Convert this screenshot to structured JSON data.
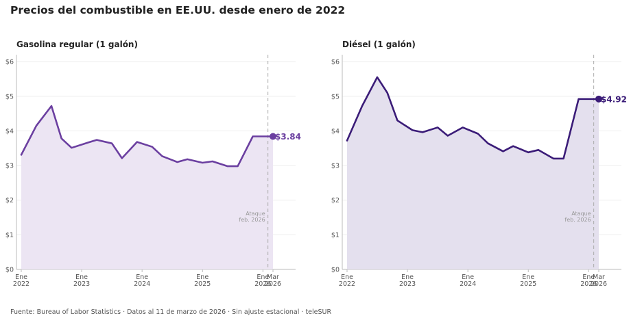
{
  "title": "Precios del combustible en EE.UU. desde enero de 2022",
  "footer": "Fuente: Bureau of Labor Statistics  ·  Datos al 11 de marzo de 2026  ·  Sin ajuste estacional  ·  teleSUR",
  "chart_data": [
    {
      "type": "line",
      "title": "Gasolina regular (1 galón)",
      "color": "#6b3fa0",
      "fill_color": "#ece5f3",
      "y_ticks": [
        "$0",
        "$1",
        "$2",
        "$3",
        "$4",
        "$5",
        "$6"
      ],
      "ylim": [
        0,
        6.2
      ],
      "x_ticks": [
        {
          "date": "2022-01",
          "line1": "Ene",
          "line2": "2022"
        },
        {
          "date": "2023-01",
          "line1": "Ene",
          "line2": "2023"
        },
        {
          "date": "2024-01",
          "line1": "Ene",
          "line2": "2024"
        },
        {
          "date": "2025-01",
          "line1": "Ene",
          "line2": "2025"
        },
        {
          "date": "2026-01",
          "line1": "Ene",
          "line2": "2026"
        },
        {
          "date": "2026-03",
          "line1": "Mar",
          "line2": "2026"
        }
      ],
      "x": [
        "2022-01",
        "2022-04",
        "2022-07",
        "2022-09",
        "2022-11",
        "2023-02",
        "2023-04",
        "2023-07",
        "2023-09",
        "2023-12",
        "2024-03",
        "2024-05",
        "2024-08",
        "2024-10",
        "2025-01",
        "2025-03",
        "2025-06",
        "2025-08",
        "2025-11",
        "2026-01",
        "2026-03"
      ],
      "values": [
        3.31,
        4.15,
        4.72,
        3.78,
        3.51,
        3.65,
        3.74,
        3.64,
        3.21,
        3.68,
        3.54,
        3.27,
        3.1,
        3.18,
        3.08,
        3.12,
        2.98,
        2.98,
        3.84,
        3.84,
        3.84
      ],
      "annotation": {
        "date": "2026-02",
        "line1": "Ataque",
        "line2": "feb. 2026"
      },
      "end_label": "$3.84"
    },
    {
      "type": "line",
      "title": "Diésel (1 galón)",
      "color": "#3b1c78",
      "fill_color": "#e4e0ee",
      "y_ticks": [
        "$0",
        "$1",
        "$2",
        "$3",
        "$4",
        "$5",
        "$6"
      ],
      "ylim": [
        0,
        6.2
      ],
      "x_ticks": [
        {
          "date": "2022-01",
          "line1": "Ene",
          "line2": "2022"
        },
        {
          "date": "2023-01",
          "line1": "Ene",
          "line2": "2023"
        },
        {
          "date": "2024-01",
          "line1": "Ene",
          "line2": "2024"
        },
        {
          "date": "2025-01",
          "line1": "Ene",
          "line2": "2025"
        },
        {
          "date": "2026-01",
          "line1": "Ene",
          "line2": "2026"
        },
        {
          "date": "2026-03",
          "line1": "Mar",
          "line2": "2026"
        }
      ],
      "x": [
        "2022-01",
        "2022-04",
        "2022-07",
        "2022-09",
        "2022-11",
        "2023-02",
        "2023-04",
        "2023-07",
        "2023-09",
        "2023-12",
        "2024-03",
        "2024-05",
        "2024-08",
        "2024-10",
        "2025-01",
        "2025-03",
        "2025-06",
        "2025-08",
        "2025-11",
        "2026-01",
        "2026-03"
      ],
      "values": [
        3.72,
        4.72,
        5.55,
        5.1,
        4.3,
        4.02,
        3.96,
        4.1,
        3.86,
        4.1,
        3.92,
        3.64,
        3.41,
        3.56,
        3.38,
        3.45,
        3.2,
        3.2,
        4.92,
        4.92,
        4.92
      ],
      "annotation": {
        "date": "2026-02",
        "line1": "Ataque",
        "line2": "feb. 2026"
      },
      "end_label": "$4.92"
    }
  ]
}
